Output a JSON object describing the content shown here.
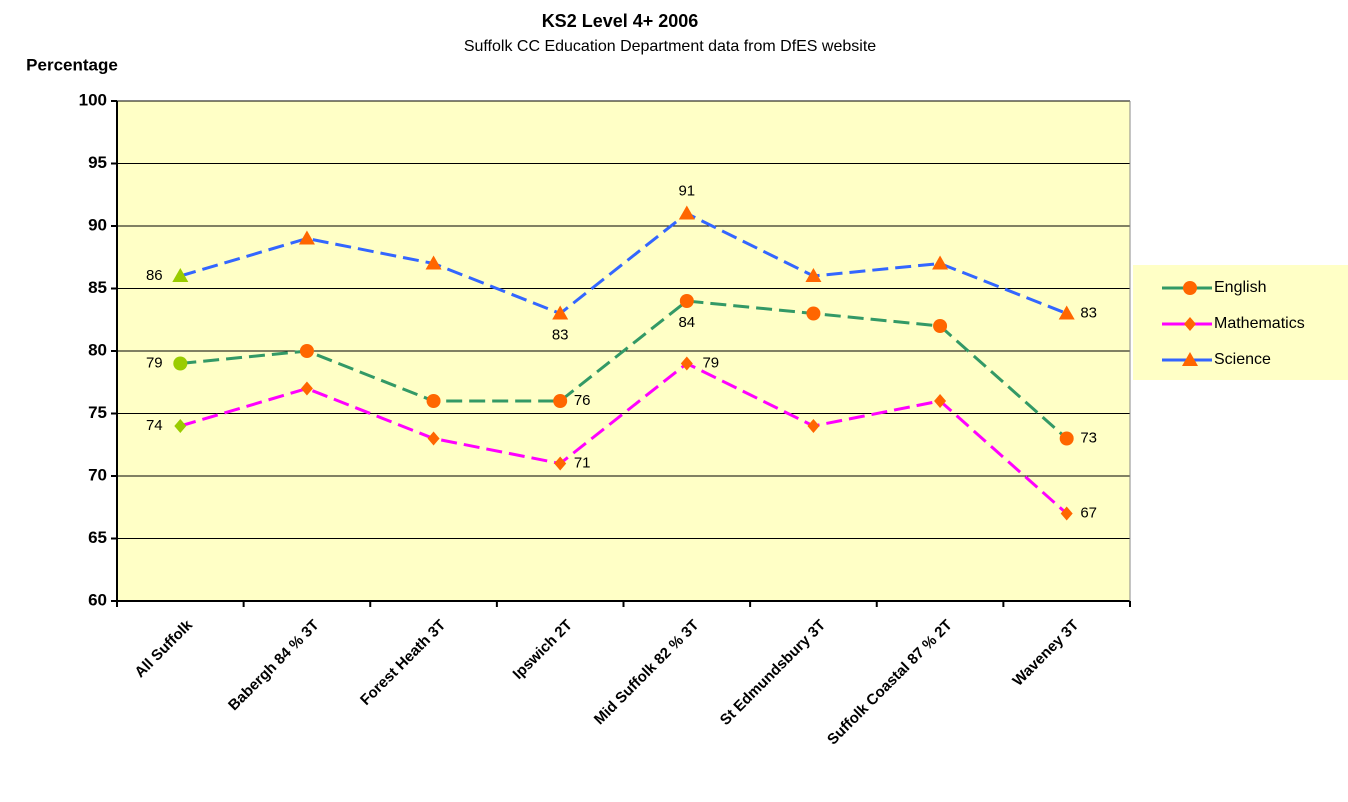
{
  "chart_data": {
    "type": "line",
    "title": "KS2 Level 4+ 2006",
    "subtitle": "Suffolk CC Education Department data from DfES website",
    "y_label": "Percentage",
    "categories": [
      "All Suffolk",
      "Babergh 84 % 3T",
      "Forest Heath 3T",
      "Ipswich 2T",
      "Mid Suffolk 82 % 3T",
      "St Edmundsbury 3T",
      "Suffolk Coastal 87 % 2T",
      "Waveney 3T"
    ],
    "series": [
      {
        "name": "English",
        "color": "#339966",
        "marker": "circle",
        "marker_color": "#ff6600",
        "values": [
          79,
          80,
          76,
          76,
          84,
          83,
          82,
          73
        ]
      },
      {
        "name": "Mathematics",
        "color": "#ff00ff",
        "marker": "diamond",
        "marker_color": "#ff6600",
        "values": [
          74,
          77,
          73,
          71,
          79,
          74,
          76,
          67
        ]
      },
      {
        "name": "Science",
        "color": "#3366ff",
        "marker": "triangle",
        "marker_color": "#ff6600",
        "values": [
          86,
          89,
          87,
          83,
          91,
          86,
          87,
          83
        ]
      }
    ],
    "labeled_points": [
      0,
      3,
      4,
      7
    ],
    "highlight": {
      "index": 0,
      "color": "#99cc00"
    },
    "ylim": [
      60,
      100
    ],
    "yticks": [
      60,
      65,
      70,
      75,
      80,
      85,
      90,
      95,
      100
    ],
    "grid": true,
    "legend": "right",
    "plot_background": "#ffffc6"
  }
}
